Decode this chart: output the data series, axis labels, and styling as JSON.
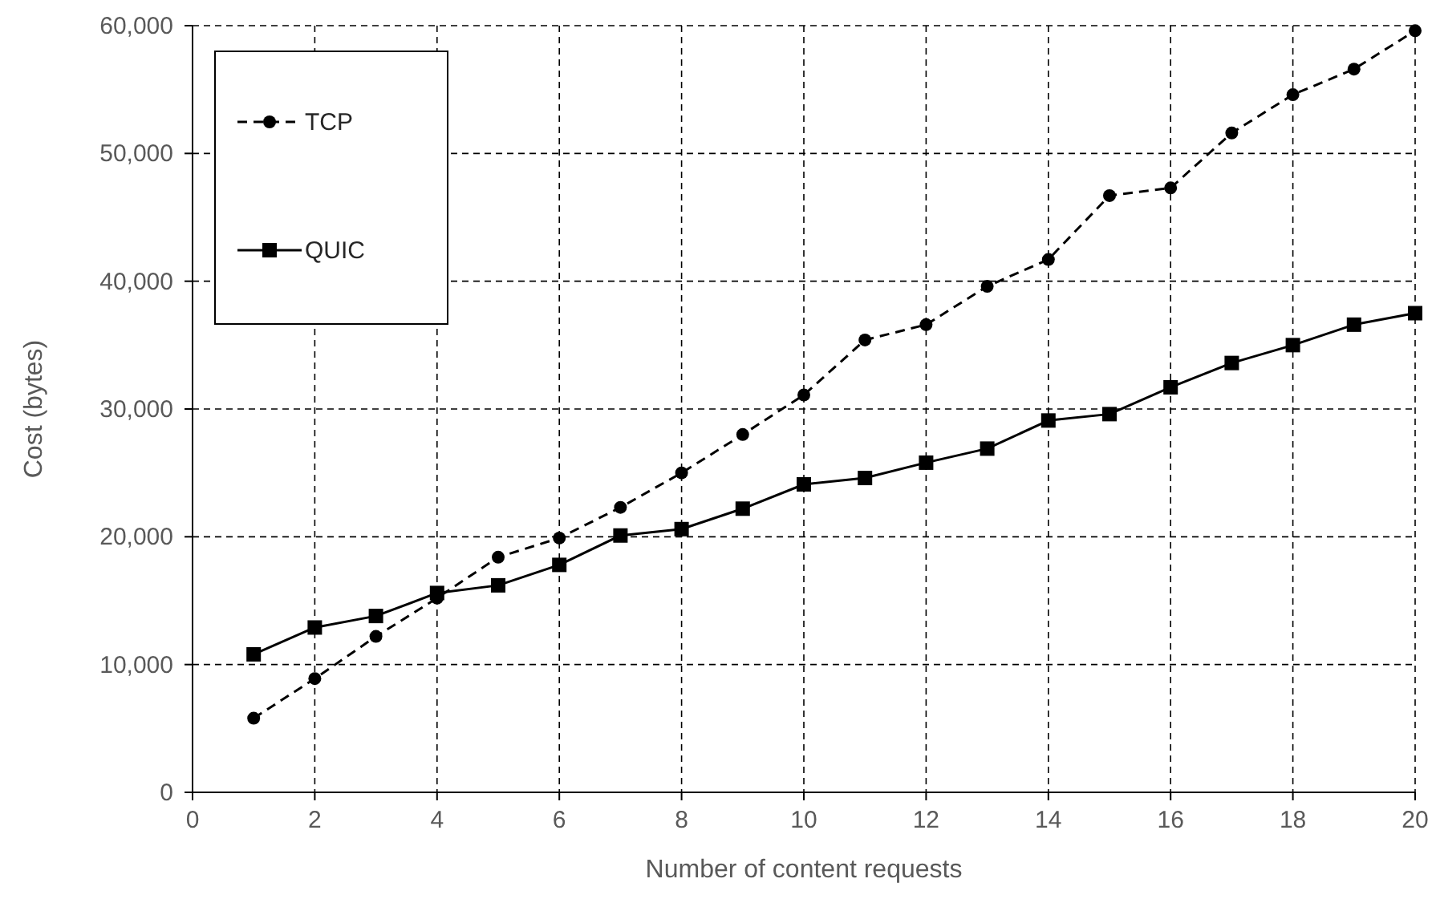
{
  "chart_data": {
    "type": "line",
    "xlabel": "Number of content requests",
    "ylabel": "Cost (bytes)",
    "x": [
      1,
      2,
      3,
      4,
      5,
      6,
      7,
      8,
      9,
      10,
      11,
      12,
      13,
      14,
      15,
      16,
      17,
      18,
      19,
      20
    ],
    "xlim": [
      0,
      20
    ],
    "xticks": [
      0,
      2,
      4,
      6,
      8,
      10,
      12,
      14,
      16,
      18,
      20
    ],
    "ylim": [
      0,
      60000
    ],
    "yticks": [
      {
        "value": 0,
        "label": "0"
      },
      {
        "value": 10000,
        "label": "10,000"
      },
      {
        "value": 20000,
        "label": "20,000"
      },
      {
        "value": 30000,
        "label": "30,000"
      },
      {
        "value": 40000,
        "label": "40,000"
      },
      {
        "value": 50000,
        "label": "50,000"
      },
      {
        "value": 60000,
        "label": "60,000"
      }
    ],
    "grid": true,
    "legend": "top left",
    "series": [
      {
        "name": "TCP",
        "color": "#000000",
        "marker": "circle",
        "line_style": "dashed",
        "values": [
          5800,
          8900,
          12200,
          15200,
          18400,
          19900,
          22300,
          25000,
          28000,
          31100,
          35400,
          36600,
          39600,
          41700,
          46700,
          47300,
          51600,
          54600,
          56600,
          59600
        ]
      },
      {
        "name": "QUIC",
        "color": "#000000",
        "marker": "square",
        "line_style": "solid",
        "values": [
          10800,
          12900,
          13800,
          15600,
          16200,
          17800,
          20100,
          20600,
          22200,
          24100,
          24600,
          25800,
          26900,
          29100,
          29600,
          31700,
          33600,
          35000,
          36600,
          37500
        ]
      }
    ]
  }
}
